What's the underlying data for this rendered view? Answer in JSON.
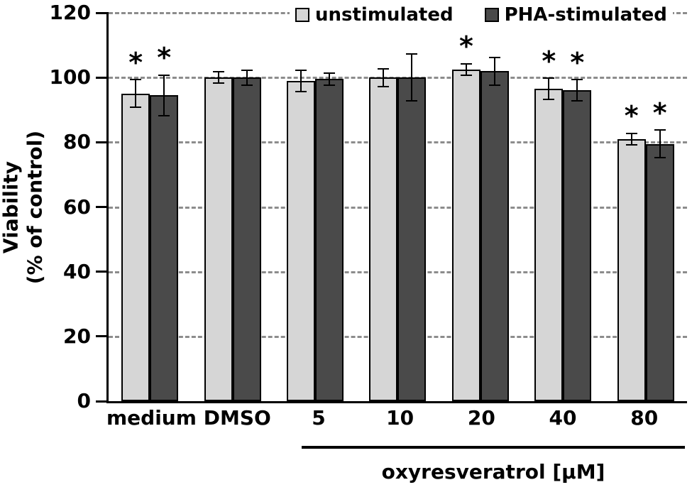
{
  "chart_data": {
    "type": "bar",
    "title": "",
    "ylabel_line1": "Viability",
    "ylabel_line2": "(% of control)",
    "xlabel": "oxyresveratrol [µM]",
    "ylim": [
      0,
      120
    ],
    "yticks": [
      0,
      20,
      40,
      60,
      80,
      100,
      120
    ],
    "grid": "dashed horizontal",
    "legend_position": "top",
    "categories": [
      "medium",
      "DMSO",
      "5",
      "10",
      "20",
      "40",
      "80"
    ],
    "series": [
      {
        "name": "unstimulated",
        "color": "#d6d6d6",
        "values": [
          95,
          100,
          99,
          100,
          102.5,
          96.5,
          81
        ],
        "errors": [
          4.5,
          2,
          3.5,
          3,
          2,
          3.5,
          2
        ],
        "significant": [
          true,
          false,
          false,
          false,
          true,
          true,
          true
        ]
      },
      {
        "name": "PHA-stimulated",
        "color": "#4a4a4a",
        "values": [
          94.5,
          100,
          99.5,
          100,
          102,
          96,
          79.5
        ],
        "errors": [
          6.5,
          2.5,
          2,
          7.5,
          4.5,
          3.5,
          4.5
        ],
        "significant": [
          true,
          false,
          false,
          false,
          false,
          true,
          true
        ]
      }
    ],
    "significance_marker": "*",
    "bracket": {
      "from_category": "5",
      "to_category": "80",
      "label": "oxyresveratrol [µM]"
    }
  }
}
